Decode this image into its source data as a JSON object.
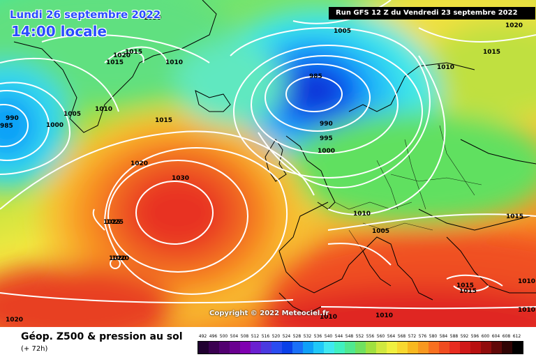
{
  "header": {
    "date": "Lundi 26 septembre 2022",
    "time": "14:00 locale",
    "run": "Run GFS 12 Z du Vendredi 23 septembre 2022"
  },
  "copyright": "Copyright © 2022 Meteociel.fr",
  "footer": {
    "title": "Géop. Z500 & pression au sol",
    "subtitle": "(+ 72h)"
  },
  "legend": {
    "values": [
      "492",
      "496",
      "500",
      "504",
      "508",
      "512",
      "516",
      "520",
      "524",
      "528",
      "532",
      "536",
      "540",
      "544",
      "548",
      "552",
      "556",
      "560",
      "564",
      "568",
      "572",
      "576",
      "580",
      "584",
      "588",
      "592",
      "596",
      "600",
      "604",
      "608",
      "612"
    ],
    "colors": [
      "#200030",
      "#3a0050",
      "#520070",
      "#6a0090",
      "#7f00b0",
      "#6a20d0",
      "#4a3ae0",
      "#2a4cf0",
      "#0a40e8",
      "#1a70f8",
      "#10a0f8",
      "#20c8f8",
      "#40e8f0",
      "#40f0c0",
      "#50e890",
      "#70e060",
      "#a0e040",
      "#d0e840",
      "#f0f040",
      "#f8d830",
      "#f8b820",
      "#f89820",
      "#f87020",
      "#f04c20",
      "#e82c20",
      "#d01818",
      "#b81010",
      "#900c0c",
      "#600808",
      "#300404",
      "#000000"
    ]
  },
  "isobars": [
    {
      "value": "985",
      "label_id": "l985"
    },
    {
      "value": "990",
      "label_id": "l990"
    }
  ],
  "isobar_labels": [
    "1030",
    "1030",
    "1025",
    "1020",
    "1015",
    "1005",
    "1010",
    "1000",
    "995",
    "990",
    "985",
    "1015",
    "1020",
    "1010",
    "1015",
    "1020",
    "1015",
    "1010",
    "1005",
    "1015",
    "1025",
    "1020",
    "1020",
    "1010",
    "1010",
    "1015",
    "1010",
    "1010",
    "1005",
    "1010",
    "1020",
    "990",
    "985",
    "1015",
    "1015"
  ]
}
